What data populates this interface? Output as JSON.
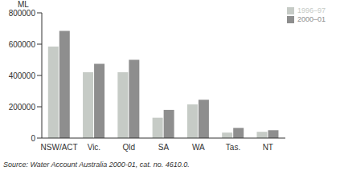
{
  "chart_data": {
    "type": "bar",
    "y_label": "ML",
    "source": "Source: Water Account Australia 2000-01, cat. no. 4610.0.",
    "categories": [
      "NSW/ACT",
      "Vic.",
      "Qld",
      "SA",
      "WA",
      "Tas.",
      "NT"
    ],
    "series": [
      {
        "name": "1996–97",
        "color": "#c6cbc6",
        "values": [
          585000,
          420000,
          420000,
          130000,
          215000,
          35000,
          40000
        ]
      },
      {
        "name": "2000–01",
        "color": "#8e8e8e",
        "values": [
          685000,
          475000,
          500000,
          180000,
          245000,
          65000,
          50000
        ]
      }
    ],
    "ylim": [
      0,
      800000
    ],
    "yticks": [
      0,
      200000,
      400000,
      600000,
      800000
    ],
    "grid": false,
    "legend": "top-right"
  }
}
